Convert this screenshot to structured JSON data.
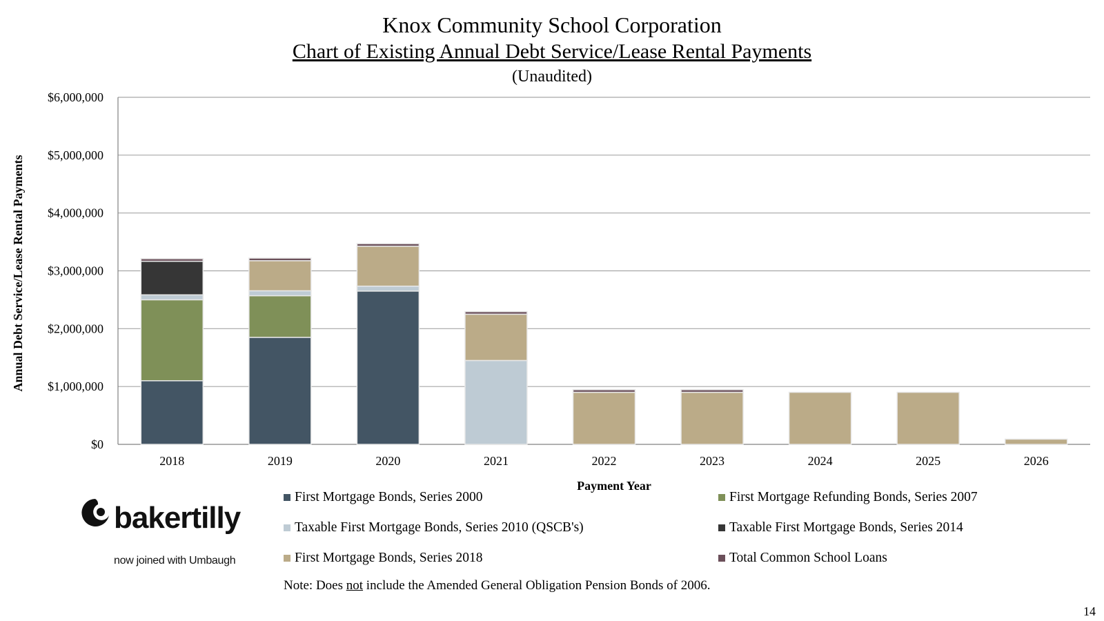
{
  "header": {
    "title": "Knox Community School Corporation",
    "subtitle": "Chart of Existing Annual Debt Service/Lease Rental Payments",
    "note_line": "(Unaudited)"
  },
  "logo": {
    "wordmark": "bakertilly",
    "tagline": "now joined with Umbaugh"
  },
  "note": {
    "prefix": "Note: Does ",
    "emphasis": "not",
    "suffix": " include the Amended General Obligation Pension Bonds of 2006."
  },
  "page_number": "14",
  "chart_data": {
    "type": "bar",
    "stacked": true,
    "title": "",
    "xlabel": "Payment Year",
    "ylabel": "Annual Debt Service/Lease Rental Payments",
    "ylim": [
      0,
      6000000
    ],
    "yticks": [
      0,
      1000000,
      2000000,
      3000000,
      4000000,
      5000000,
      6000000
    ],
    "ytick_labels": [
      "$0",
      "$1,000,000",
      "$2,000,000",
      "$3,000,000",
      "$4,000,000",
      "$5,000,000",
      "$6,000,000"
    ],
    "grid": true,
    "legend_position": "bottom",
    "categories": [
      "2018",
      "2019",
      "2020",
      "2021",
      "2022",
      "2023",
      "2024",
      "2025",
      "2026"
    ],
    "series": [
      {
        "name": "First Mortgage Bonds, Series 2000",
        "color": "#435564",
        "values": [
          1100000,
          1850000,
          2650000,
          0,
          0,
          0,
          0,
          0,
          0
        ]
      },
      {
        "name": "First Mortgage Refunding Bonds, Series 2007",
        "color": "#7f9058",
        "values": [
          1400000,
          720000,
          0,
          0,
          0,
          0,
          0,
          0,
          0
        ]
      },
      {
        "name": "Taxable First Mortgage Bonds, Series 2010 (QSCB's)",
        "color": "#becbd4",
        "values": [
          85000,
          85000,
          85000,
          1450000,
          0,
          0,
          0,
          0,
          0
        ]
      },
      {
        "name": "Taxable First Mortgage Bonds, Series 2014",
        "color": "#363636",
        "values": [
          580000,
          0,
          0,
          0,
          0,
          0,
          0,
          0,
          0
        ]
      },
      {
        "name": "First Mortgage Bonds, Series 2018",
        "color": "#bbab88",
        "values": [
          0,
          520000,
          690000,
          800000,
          900000,
          900000,
          900000,
          900000,
          90000
        ]
      },
      {
        "name": "Total Common School Loans",
        "color": "#6b4f5a",
        "values": [
          45000,
          45000,
          45000,
          45000,
          45000,
          45000,
          0,
          0,
          0
        ]
      }
    ]
  }
}
